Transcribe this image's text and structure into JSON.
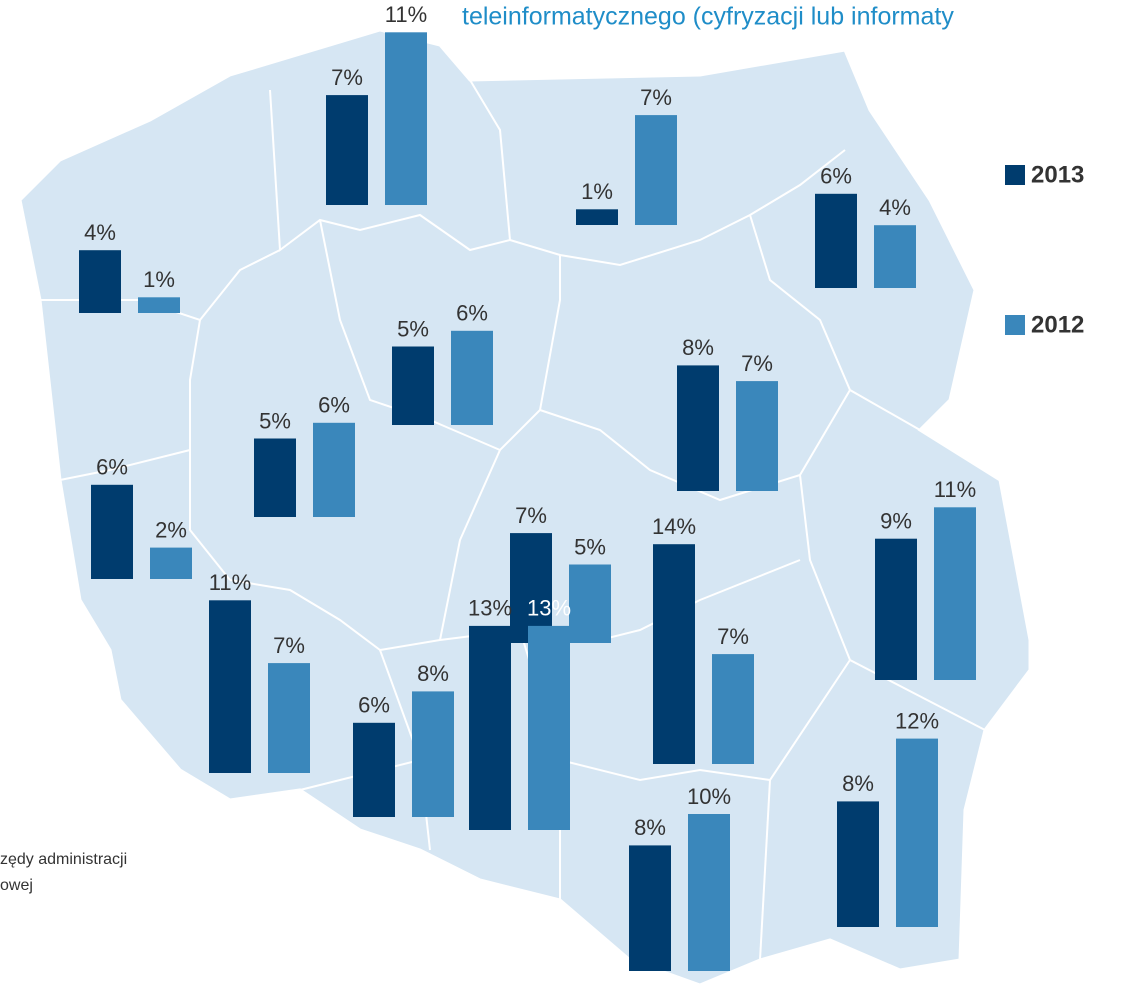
{
  "chart_data": {
    "type": "bar-map",
    "title": "teleinformatycznego (cyfryzacji lub informaty",
    "footnote": [
      "zędy administracji",
      "owej"
    ],
    "series": [
      {
        "name": "2013",
        "color": "#003c6e",
        "values": [
          7,
          1,
          6,
          4,
          5,
          5,
          8,
          6,
          9,
          7,
          14,
          11,
          6,
          13,
          8,
          8
        ],
        "value_labels": [
          "7%",
          "1%",
          "6%",
          "4%",
          "5%",
          "5%",
          "8%",
          "6%",
          "9%",
          "7%",
          "14%",
          "11%",
          "6%",
          "13%",
          "8%",
          "8%"
        ]
      },
      {
        "name": "2012",
        "color": "#3a87bb",
        "values": [
          11,
          7,
          4,
          1,
          6,
          6,
          7,
          2,
          11,
          5,
          7,
          7,
          8,
          13,
          10,
          12
        ],
        "value_labels": [
          "11%",
          "7%",
          "4%",
          "1%",
          "6%",
          "6%",
          "7%",
          "2%",
          "11%",
          "5%",
          "7%",
          "7%",
          "8%",
          "13%",
          "10%",
          "12%"
        ]
      }
    ]
  }
}
